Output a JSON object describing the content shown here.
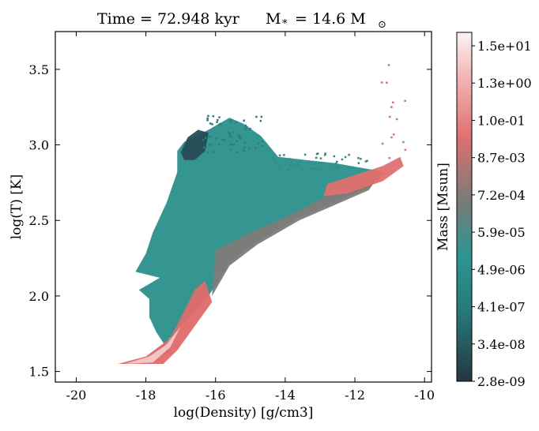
{
  "chart_data": {
    "type": "heatmap",
    "title": "Time = 72.948 kyr",
    "title_mass": "M",
    "title_mass_sub": "*",
    "title_mass_value": "= 14.6 M",
    "title_mass_sun": "⊙",
    "xlabel": "log(Density) [g/cm3]",
    "ylabel": "log(T) [K]",
    "xlim": [
      -20.6,
      -9.8
    ],
    "ylim": [
      1.43,
      3.75
    ],
    "x_ticks": [
      {
        "value": -20,
        "label": "-20"
      },
      {
        "value": -18,
        "label": "-18"
      },
      {
        "value": -16,
        "label": "-16"
      },
      {
        "value": -14,
        "label": "-14"
      },
      {
        "value": -12,
        "label": "-12"
      },
      {
        "value": -10,
        "label": "-10"
      }
    ],
    "y_ticks": [
      {
        "value": 1.5,
        "label": "1.5"
      },
      {
        "value": 2.0,
        "label": "2.0"
      },
      {
        "value": 2.5,
        "label": "2.5"
      },
      {
        "value": 3.0,
        "label": "3.0"
      },
      {
        "value": 3.5,
        "label": "3.5"
      }
    ],
    "colorbar": {
      "label": "Mass [Msun]",
      "scale": "log",
      "ticks": [
        "2.8e-09",
        "3.4e-08",
        "4.1e-07",
        "4.9e-06",
        "5.9e-05",
        "7.2e-04",
        "8.7e-03",
        "1.0e-01",
        "1.3e+00",
        "1.5e+01"
      ],
      "colors": [
        "#243642",
        "#277a79",
        "#2c9690",
        "#7a7a78",
        "#e07070",
        "#f4b8b8",
        "#fbf4f4"
      ]
    },
    "regions": [
      {
        "name": "cold-dense-envelope",
        "color": "#2a8f8a",
        "outline": [
          [
            -16.9,
            3.02
          ],
          [
            -16.2,
            3.1
          ],
          [
            -15.6,
            3.18
          ],
          [
            -15.2,
            3.14
          ],
          [
            -14.7,
            3.06
          ],
          [
            -14.2,
            2.92
          ],
          [
            -13.4,
            2.9
          ],
          [
            -12.6,
            2.88
          ],
          [
            -11.6,
            2.84
          ],
          [
            -11.1,
            2.82
          ],
          [
            -11.6,
            2.72
          ],
          [
            -12.6,
            2.62
          ],
          [
            -13.6,
            2.52
          ],
          [
            -14.8,
            2.36
          ],
          [
            -15.6,
            2.22
          ],
          [
            -16.2,
            2.0
          ],
          [
            -16.8,
            1.84
          ],
          [
            -17.4,
            1.7
          ],
          [
            -17.9,
            1.6
          ],
          [
            -17.3,
            1.62
          ],
          [
            -17.7,
            1.76
          ],
          [
            -17.9,
            1.86
          ],
          [
            -17.9,
            1.98
          ],
          [
            -18.2,
            2.04
          ],
          [
            -17.9,
            2.08
          ],
          [
            -17.6,
            2.12
          ],
          [
            -18.3,
            2.16
          ],
          [
            -18.0,
            2.28
          ],
          [
            -17.8,
            2.42
          ],
          [
            -17.4,
            2.62
          ],
          [
            -17.1,
            2.82
          ],
          [
            -17.1,
            2.96
          ]
        ]
      },
      {
        "name": "cold-dark-cap",
        "color": "#274b55",
        "outline": [
          [
            -17.0,
            2.95
          ],
          [
            -16.8,
            3.05
          ],
          [
            -16.5,
            3.1
          ],
          [
            -16.2,
            3.08
          ],
          [
            -16.3,
            2.96
          ],
          [
            -16.6,
            2.9
          ],
          [
            -16.9,
            2.9
          ]
        ]
      },
      {
        "name": "warm-transition",
        "color": "#7e7b78",
        "outline": [
          [
            -16.0,
            2.3
          ],
          [
            -15.0,
            2.42
          ],
          [
            -14.0,
            2.52
          ],
          [
            -13.0,
            2.64
          ],
          [
            -12.0,
            2.74
          ],
          [
            -11.3,
            2.8
          ],
          [
            -11.6,
            2.7
          ],
          [
            -12.6,
            2.6
          ],
          [
            -13.6,
            2.5
          ],
          [
            -14.8,
            2.34
          ],
          [
            -15.6,
            2.2
          ],
          [
            -16.1,
            2.0
          ]
        ]
      },
      {
        "name": "dense-core-ridge",
        "color": "#e06a6a",
        "outline": [
          [
            -18.8,
            1.55
          ],
          [
            -18.0,
            1.6
          ],
          [
            -17.3,
            1.72
          ],
          [
            -16.9,
            1.9
          ],
          [
            -16.6,
            2.04
          ],
          [
            -16.3,
            2.1
          ],
          [
            -16.1,
            1.96
          ],
          [
            -16.6,
            1.8
          ],
          [
            -17.1,
            1.64
          ],
          [
            -17.5,
            1.55
          ]
        ]
      },
      {
        "name": "hot-dense-ridge",
        "color": "#e26f6f",
        "outline": [
          [
            -12.8,
            2.74
          ],
          [
            -12.0,
            2.8
          ],
          [
            -11.2,
            2.86
          ],
          [
            -10.7,
            2.92
          ],
          [
            -10.6,
            2.86
          ],
          [
            -11.2,
            2.76
          ],
          [
            -12.2,
            2.68
          ],
          [
            -12.9,
            2.66
          ]
        ]
      },
      {
        "name": "peak-density-core",
        "color": "#f3c9c9",
        "outline": [
          [
            -18.6,
            1.55
          ],
          [
            -17.9,
            1.6
          ],
          [
            -17.4,
            1.68
          ],
          [
            -17.0,
            1.8
          ],
          [
            -17.3,
            1.66
          ],
          [
            -17.8,
            1.56
          ]
        ]
      }
    ]
  }
}
